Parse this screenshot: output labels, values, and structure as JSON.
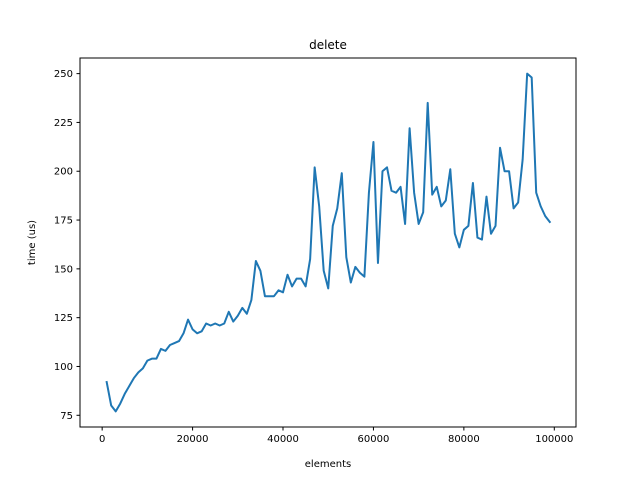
{
  "chart_data": {
    "type": "line",
    "title": "delete",
    "xlabel": "elements",
    "ylabel": "time (us)",
    "xlim": [
      -4900,
      104800
    ],
    "ylim": [
      69,
      258
    ],
    "x_ticks": [
      0,
      20000,
      40000,
      60000,
      80000,
      100000
    ],
    "y_ticks": [
      75,
      100,
      125,
      150,
      175,
      200,
      225,
      250
    ],
    "grid": false,
    "legend": "none",
    "series": [
      {
        "color": "#1f77b4",
        "x": [
          1000,
          2000,
          3000,
          4000,
          5000,
          6000,
          7000,
          8000,
          9000,
          10000,
          11000,
          12000,
          13000,
          14000,
          15000,
          16000,
          17000,
          18000,
          19000,
          20000,
          21000,
          22000,
          23000,
          24000,
          25000,
          26000,
          27000,
          28000,
          29000,
          30000,
          31000,
          32000,
          33000,
          34000,
          35000,
          36000,
          37000,
          38000,
          39000,
          40000,
          41000,
          42000,
          43000,
          44000,
          45000,
          46000,
          47000,
          48000,
          49000,
          50000,
          51000,
          52000,
          53000,
          54000,
          55000,
          56000,
          57000,
          58000,
          59000,
          60000,
          61000,
          62000,
          63000,
          64000,
          65000,
          66000,
          67000,
          68000,
          69000,
          70000,
          71000,
          72000,
          73000,
          74000,
          75000,
          76000,
          77000,
          78000,
          79000,
          80000,
          81000,
          82000,
          83000,
          84000,
          85000,
          86000,
          87000,
          88000,
          89000,
          90000,
          91000,
          92000,
          93000,
          94000,
          95000,
          96000,
          97000,
          98000,
          99000
        ],
        "values": [
          92,
          80,
          77,
          81,
          86,
          90,
          94,
          97,
          99,
          103,
          104,
          104,
          109,
          108,
          111,
          112,
          113,
          117,
          124,
          119,
          117,
          118,
          122,
          121,
          122,
          121,
          122,
          128,
          123,
          126,
          130,
          127,
          134,
          154,
          149,
          136,
          136,
          136,
          139,
          138,
          147,
          141,
          145,
          145,
          141,
          155,
          202,
          182,
          149,
          140,
          172,
          181,
          199,
          156,
          143,
          151,
          148,
          146,
          189,
          215,
          153,
          200,
          202,
          190,
          189,
          192,
          173,
          222,
          189,
          173,
          179,
          235,
          188,
          192,
          182,
          185,
          201,
          168,
          161,
          170,
          172,
          194,
          166,
          165,
          187,
          168,
          172,
          212,
          200,
          200,
          181,
          184,
          206,
          250,
          248,
          189,
          182,
          177,
          174
        ]
      }
    ]
  }
}
